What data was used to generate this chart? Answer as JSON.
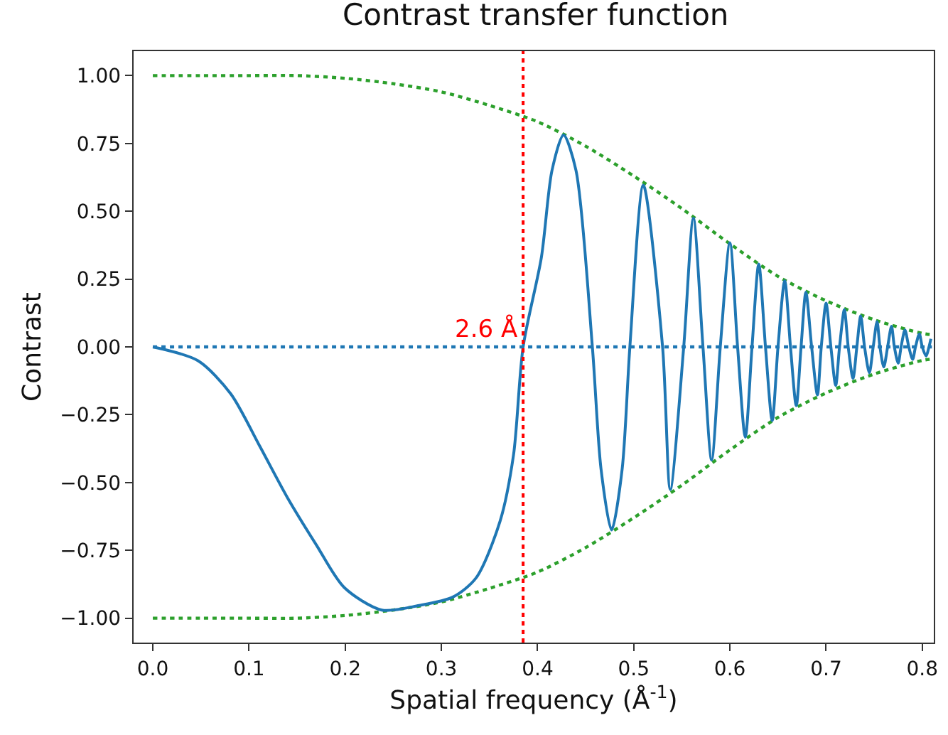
{
  "chart_data": {
    "type": "line",
    "title": "Contrast transfer function",
    "xlabel": "Spatial frequency (Å$^{-1}$)",
    "ylabel": "Contrast",
    "xlim": [
      -0.02,
      0.812
    ],
    "ylim": [
      -1.09,
      1.09
    ],
    "xticks": [
      {
        "value": 0,
        "label": "0.0"
      },
      {
        "value": 0.1,
        "label": "0.1"
      },
      {
        "value": 0.2,
        "label": "0.2"
      },
      {
        "value": 0.3,
        "label": "0.3"
      },
      {
        "value": 0.4,
        "label": "0.4"
      },
      {
        "value": 0.5,
        "label": "0.5"
      },
      {
        "value": 0.6,
        "label": "0.6"
      },
      {
        "value": 0.7,
        "label": "0.7"
      },
      {
        "value": 0.8,
        "label": "0.8"
      }
    ],
    "yticks": [
      {
        "value": -1,
        "label": "−1.00"
      },
      {
        "value": -0.75,
        "label": "−0.75"
      },
      {
        "value": -0.5,
        "label": "−0.50"
      },
      {
        "value": -0.25,
        "label": "−0.25"
      },
      {
        "value": 0,
        "label": "0.00"
      },
      {
        "value": 0.25,
        "label": "0.25"
      },
      {
        "value": 0.5,
        "label": "0.50"
      },
      {
        "value": 0.75,
        "label": "0.75"
      },
      {
        "value": 1,
        "label": "1.00"
      }
    ],
    "marker": "none",
    "ref_lines": [
      {
        "axis": "x",
        "value": 0.385,
        "label": "2.6 Å",
        "color": "#ff0000",
        "line_style": "dotted"
      }
    ],
    "series": [
      {
        "color": "#1f77b4",
        "line_style": "dotted",
        "x": [
          0,
          0.81
        ],
        "values": [
          0,
          0
        ]
      },
      {
        "color": "#2ca02c",
        "line_style": "dotted",
        "x": [
          0,
          0.05,
          0.1,
          0.15,
          0.2,
          0.25,
          0.3,
          0.35,
          0.4,
          0.45,
          0.5,
          0.55,
          0.6,
          0.65,
          0.7,
          0.75,
          0.8,
          0.81
        ],
        "values": [
          1.0,
          1.0,
          1.0,
          1.0,
          0.99,
          0.97,
          0.94,
          0.89,
          0.83,
          0.74,
          0.63,
          0.51,
          0.38,
          0.26,
          0.17,
          0.1,
          0.05,
          0.045
        ]
      },
      {
        "color": "#2ca02c",
        "line_style": "dotted",
        "x": [
          0,
          0.05,
          0.1,
          0.15,
          0.2,
          0.25,
          0.3,
          0.35,
          0.4,
          0.45,
          0.5,
          0.55,
          0.6,
          0.65,
          0.7,
          0.75,
          0.8,
          0.81
        ],
        "values": [
          -1.0,
          -1.0,
          -1.0,
          -1.0,
          -0.99,
          -0.97,
          -0.94,
          -0.89,
          -0.83,
          -0.74,
          -0.63,
          -0.51,
          -0.38,
          -0.26,
          -0.17,
          -0.1,
          -0.05,
          -0.045
        ]
      },
      {
        "color": "#1f77b4",
        "line_style": "solid",
        "x": [
          0,
          0.047,
          0.081,
          0.111,
          0.14,
          0.17,
          0.199,
          0.238,
          0.277,
          0.312,
          0.336,
          0.361,
          0.375,
          0.385,
          0.404,
          0.415,
          0.427,
          0.44,
          0.457,
          0.466,
          0.477,
          0.488,
          0.496,
          0.51,
          0.53,
          0.538,
          0.552,
          0.562,
          0.572,
          0.581,
          0.59,
          0.6,
          0.608,
          0.616,
          0.623,
          0.63,
          0.637,
          0.644,
          0.65,
          0.657,
          0.663,
          0.669,
          0.674,
          0.679,
          0.685,
          0.691,
          0.695,
          0.7,
          0.705,
          0.71,
          0.714,
          0.719,
          0.723,
          0.728,
          0.732,
          0.736,
          0.74,
          0.745,
          0.749,
          0.753,
          0.756,
          0.76,
          0.764,
          0.768,
          0.771,
          0.775,
          0.778,
          0.782,
          0.786,
          0.79,
          0.793,
          0.797,
          0.8,
          0.804,
          0.807,
          0.809
        ],
        "values": [
          0,
          -0.051,
          -0.173,
          -0.365,
          -0.556,
          -0.73,
          -0.887,
          -0.97,
          -0.953,
          -0.922,
          -0.852,
          -0.643,
          -0.399,
          0,
          0.33,
          0.65,
          0.781,
          0.65,
          0,
          -0.45,
          -0.675,
          -0.45,
          0,
          0.596,
          0,
          -0.526,
          0,
          0.474,
          0,
          -0.417,
          0,
          0.384,
          0,
          -0.333,
          0,
          0.305,
          0,
          -0.272,
          0,
          0.244,
          0,
          -0.217,
          0,
          0.201,
          0,
          -0.177,
          0,
          0.161,
          0,
          -0.142,
          0,
          0.137,
          0,
          -0.116,
          0,
          0.114,
          0,
          -0.095,
          0,
          0.093,
          0,
          -0.074,
          0,
          0.076,
          0,
          -0.06,
          0,
          0.062,
          0,
          -0.046,
          0,
          0.048,
          0,
          -0.034,
          0,
          0.03
        ]
      }
    ]
  }
}
